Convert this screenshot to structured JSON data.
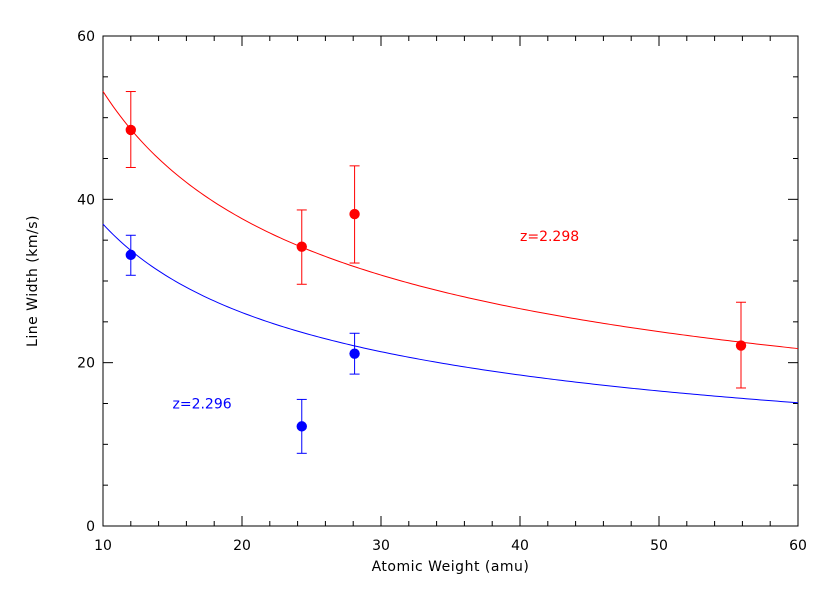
{
  "chart_data": {
    "type": "scatter",
    "title": "",
    "xlabel": "Atomic Weight (amu)",
    "ylabel": "Line Width (km/s)",
    "xlim": [
      10,
      60
    ],
    "ylim": [
      0,
      60
    ],
    "x_ticks": [
      10,
      20,
      30,
      40,
      50,
      60
    ],
    "y_ticks": [
      0,
      20,
      40,
      60
    ],
    "x_minor_step": 2,
    "y_minor_step": 5,
    "grid": false,
    "legend": "none",
    "series": [
      {
        "color": "#ff0000",
        "points": [
          {
            "x": 12.0,
            "y": 48.5,
            "err_low": 4.6,
            "err_high": 4.7
          },
          {
            "x": 24.3,
            "y": 34.2,
            "err_low": 4.6,
            "err_high": 4.5
          },
          {
            "x": 28.1,
            "y": 38.2,
            "err_low": 6.0,
            "err_high": 5.9
          },
          {
            "x": 55.9,
            "y": 22.1,
            "err_low": 5.2,
            "err_high": 5.3
          }
        ],
        "fit": {
          "form": "y = a / sqrt(x)",
          "a": 168.3
        },
        "annotation": {
          "text": "z=2.298",
          "x": 40,
          "y": 35.5
        }
      },
      {
        "color": "#0000ff",
        "points": [
          {
            "x": 12.0,
            "y": 33.2,
            "err_low": 2.5,
            "err_high": 2.4
          },
          {
            "x": 24.3,
            "y": 12.2,
            "err_low": 3.3,
            "err_high": 3.3
          },
          {
            "x": 28.1,
            "y": 21.1,
            "err_low": 2.5,
            "err_high": 2.5
          }
        ],
        "fit": {
          "form": "y = a / sqrt(x)",
          "a": 116.9
        },
        "annotation": {
          "text": "z=2.296",
          "x": 15,
          "y": 15
        }
      }
    ]
  }
}
